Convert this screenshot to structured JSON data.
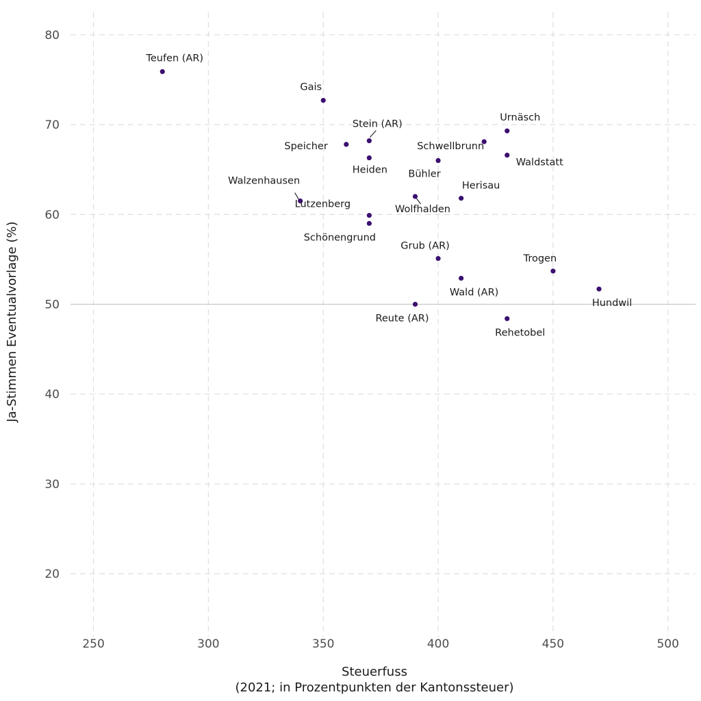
{
  "chart_data": {
    "type": "scatter",
    "title": "",
    "xlabel": "Steuerfuss",
    "xlabel_sub": "(2021; in Prozentpunkten der Kantonssteuer)",
    "ylabel": "Ja-Stimmen Eventualvorlage (%)",
    "xlim": [
      240,
      512
    ],
    "ylim": [
      13,
      82.5
    ],
    "x_ticks": [
      250,
      300,
      350,
      400,
      450,
      500
    ],
    "y_ticks": [
      20,
      30,
      40,
      50,
      60,
      70,
      80
    ],
    "reference_line_y": 50,
    "grid": true,
    "point_color": "#3b0f6f",
    "points": [
      {
        "label": "Teufen (AR)",
        "x": 280,
        "y": 75.9
      },
      {
        "label": "Gais",
        "x": 350,
        "y": 72.7
      },
      {
        "label": "Stein (AR)",
        "x": 370,
        "y": 68.2
      },
      {
        "label": "Speicher",
        "x": 360,
        "y": 67.8
      },
      {
        "label": "Heiden",
        "x": 370,
        "y": 66.3
      },
      {
        "label": "Urnäsch",
        "x": 430,
        "y": 69.3
      },
      {
        "label": "Schwellbrunn",
        "x": 420,
        "y": 68.1
      },
      {
        "label": "Waldstatt",
        "x": 430,
        "y": 66.6
      },
      {
        "label": "Bühler",
        "x": 400,
        "y": 66.0
      },
      {
        "label": "Walzenhausen",
        "x": 340,
        "y": 61.5
      },
      {
        "label": "Lutzenberg",
        "x": 370,
        "y": 59.9
      },
      {
        "label": "Wolfhalden",
        "x": 390,
        "y": 62.0
      },
      {
        "label": "Herisau",
        "x": 410,
        "y": 61.8
      },
      {
        "label": "Schönengrund",
        "x": 370,
        "y": 59.0
      },
      {
        "label": "Grub (AR)",
        "x": 400,
        "y": 55.1
      },
      {
        "label": "Trogen",
        "x": 450,
        "y": 53.7
      },
      {
        "label": "Wald (AR)",
        "x": 410,
        "y": 52.9
      },
      {
        "label": "Hundwil",
        "x": 470,
        "y": 51.7
      },
      {
        "label": "Reute (AR)",
        "x": 390,
        "y": 50.0
      },
      {
        "label": "Rehetobel",
        "x": 430,
        "y": 48.4
      }
    ]
  }
}
